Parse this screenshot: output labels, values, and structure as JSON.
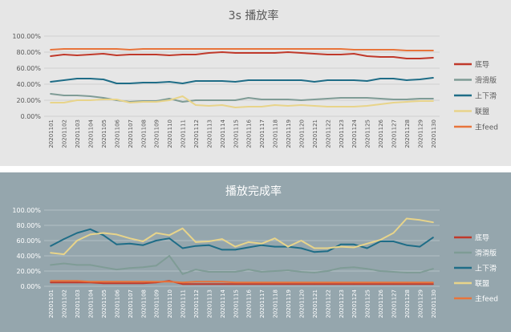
{
  "chart_data": [
    {
      "type": "line",
      "title": "3s 播放率",
      "xlabel": "",
      "ylabel": "",
      "ylim": [
        0,
        1
      ],
      "y_ticks": [
        "0.00%",
        "20.00%",
        "40.00%",
        "60.00%",
        "80.00%",
        "100.00%"
      ],
      "grid": true,
      "legend": "right",
      "background": "#e6e6e6",
      "categories": [
        "20201101",
        "20201102",
        "20201103",
        "20201104",
        "20201105",
        "20201106",
        "20201107",
        "20201108",
        "20201109",
        "20201110",
        "20201111",
        "20201112",
        "20201113",
        "20201114",
        "20201115",
        "20201116",
        "20201117",
        "20201118",
        "20201119",
        "20201120",
        "20201121",
        "20201122",
        "20201123",
        "20201124",
        "20201125",
        "20201126",
        "20201127",
        "20201128",
        "20201129",
        "20201130"
      ],
      "series": [
        {
          "name": "底导",
          "color": "#c0392b",
          "values": [
            0.75,
            0.77,
            0.76,
            0.77,
            0.78,
            0.76,
            0.77,
            0.77,
            0.77,
            0.76,
            0.77,
            0.77,
            0.79,
            0.8,
            0.79,
            0.79,
            0.79,
            0.79,
            0.8,
            0.79,
            0.78,
            0.77,
            0.77,
            0.78,
            0.75,
            0.74,
            0.74,
            0.72,
            0.72,
            0.73
          ]
        },
        {
          "name": "滑滑版",
          "color": "#7f9c96",
          "values": [
            0.28,
            0.26,
            0.26,
            0.25,
            0.23,
            0.2,
            0.18,
            0.19,
            0.19,
            0.22,
            0.18,
            0.2,
            0.2,
            0.2,
            0.2,
            0.23,
            0.21,
            0.21,
            0.21,
            0.2,
            0.21,
            0.22,
            0.23,
            0.23,
            0.23,
            0.22,
            0.21,
            0.21,
            0.22,
            0.22
          ]
        },
        {
          "name": "上下滑",
          "color": "#1f6d87",
          "values": [
            0.43,
            0.45,
            0.47,
            0.47,
            0.46,
            0.41,
            0.41,
            0.42,
            0.42,
            0.43,
            0.41,
            0.44,
            0.44,
            0.44,
            0.43,
            0.45,
            0.45,
            0.45,
            0.45,
            0.45,
            0.43,
            0.45,
            0.45,
            0.45,
            0.44,
            0.47,
            0.47,
            0.45,
            0.46,
            0.48
          ]
        },
        {
          "name": "联盟",
          "color": "#e8d48a",
          "values": [
            0.17,
            0.17,
            0.2,
            0.2,
            0.21,
            0.21,
            0.17,
            0.18,
            0.18,
            0.2,
            0.25,
            0.14,
            0.13,
            0.14,
            0.11,
            0.12,
            0.12,
            0.14,
            0.13,
            0.14,
            0.13,
            0.12,
            0.12,
            0.12,
            0.13,
            0.15,
            0.17,
            0.18,
            0.19,
            0.19
          ]
        },
        {
          "name": "主feed",
          "color": "#e8743b",
          "values": [
            0.83,
            0.84,
            0.84,
            0.84,
            0.84,
            0.84,
            0.83,
            0.84,
            0.84,
            0.84,
            0.84,
            0.84,
            0.84,
            0.84,
            0.84,
            0.84,
            0.84,
            0.84,
            0.84,
            0.84,
            0.84,
            0.84,
            0.84,
            0.83,
            0.83,
            0.83,
            0.83,
            0.82,
            0.82,
            0.82
          ]
        }
      ]
    },
    {
      "type": "line",
      "title": "播放完成率",
      "xlabel": "",
      "ylabel": "",
      "ylim": [
        0,
        1
      ],
      "y_ticks": [
        "0.00%",
        "20.00%",
        "40.00%",
        "60.00%",
        "80.00%",
        "100.00%"
      ],
      "grid": true,
      "legend": "right",
      "background": "#95a6ad",
      "categories": [
        "20201101",
        "20201102",
        "20201103",
        "20201104",
        "20201105",
        "20201106",
        "20201107",
        "20201108",
        "20201109",
        "20201110",
        "20201111",
        "20201112",
        "20201113",
        "20201114",
        "20201115",
        "20201116",
        "20201117",
        "20201118",
        "20201119",
        "20201120",
        "20201121",
        "20201122",
        "20201123",
        "20201124",
        "20201125",
        "20201126",
        "20201127",
        "20201128",
        "20201129",
        "20201130"
      ],
      "series": [
        {
          "name": "底导",
          "color": "#c0392b",
          "values": [
            0.05,
            0.05,
            0.05,
            0.05,
            0.04,
            0.04,
            0.04,
            0.04,
            0.05,
            0.07,
            0.03,
            0.03,
            0.03,
            0.03,
            0.03,
            0.03,
            0.03,
            0.03,
            0.03,
            0.03,
            0.03,
            0.03,
            0.03,
            0.03,
            0.03,
            0.03,
            0.03,
            0.03,
            0.03,
            0.03
          ]
        },
        {
          "name": "滑滑版",
          "color": "#7f9c96",
          "values": [
            0.28,
            0.3,
            0.28,
            0.28,
            0.25,
            0.22,
            0.24,
            0.25,
            0.27,
            0.4,
            0.16,
            0.22,
            0.19,
            0.19,
            0.19,
            0.22,
            0.19,
            0.2,
            0.21,
            0.19,
            0.18,
            0.2,
            0.24,
            0.25,
            0.23,
            0.2,
            0.19,
            0.18,
            0.18,
            0.23
          ]
        },
        {
          "name": "上下滑",
          "color": "#1f6d87",
          "values": [
            0.53,
            0.62,
            0.7,
            0.75,
            0.67,
            0.55,
            0.56,
            0.54,
            0.6,
            0.63,
            0.5,
            0.53,
            0.54,
            0.48,
            0.48,
            0.51,
            0.54,
            0.52,
            0.52,
            0.5,
            0.45,
            0.46,
            0.55,
            0.55,
            0.5,
            0.59,
            0.59,
            0.54,
            0.52,
            0.64
          ]
        },
        {
          "name": "联盟",
          "color": "#e8d48a",
          "values": [
            0.44,
            0.42,
            0.6,
            0.68,
            0.7,
            0.68,
            0.63,
            0.59,
            0.7,
            0.67,
            0.76,
            0.58,
            0.59,
            0.62,
            0.52,
            0.58,
            0.56,
            0.63,
            0.52,
            0.6,
            0.5,
            0.5,
            0.52,
            0.51,
            0.56,
            0.61,
            0.7,
            0.89,
            0.87,
            0.84
          ]
        },
        {
          "name": "主feed",
          "color": "#e8743b",
          "values": [
            0.07,
            0.07,
            0.07,
            0.06,
            0.06,
            0.06,
            0.06,
            0.06,
            0.06,
            0.06,
            0.05,
            0.06,
            0.06,
            0.06,
            0.05,
            0.05,
            0.05,
            0.05,
            0.05,
            0.05,
            0.05,
            0.05,
            0.05,
            0.05,
            0.05,
            0.05,
            0.05,
            0.05,
            0.05,
            0.05
          ]
        }
      ]
    }
  ]
}
